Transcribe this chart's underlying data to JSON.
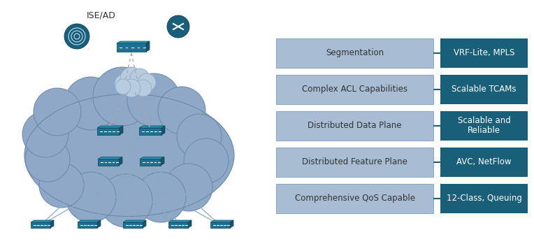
{
  "bg_color": "#ffffff",
  "left_panel": {
    "cloud_color": "#8fa8c8",
    "cloud_stroke": "#6a88a8",
    "switch_color": "#1a5f7a",
    "line_color": "#7a9ab8",
    "dot_line_color": "#aaaaaa",
    "ise_text": "ISE/AD"
  },
  "rows": [
    {
      "label": "Segmentation",
      "detail": "VRF-Lite, MPLS"
    },
    {
      "label": "Complex ACL Capabilities",
      "detail": "Scalable TCAMs"
    },
    {
      "label": "Distributed Data Plane",
      "detail": "Scalable and\nReliable"
    },
    {
      "label": "Distributed Feature Plane",
      "detail": "AVC, NetFlow"
    },
    {
      "label": "Comprehensive QoS Capable",
      "detail": "12-Class, Queuing"
    }
  ],
  "left_box_color": "#a8bcd4",
  "left_box_edge_color": "#8aaac4",
  "right_box_color": "#1a5f7a",
  "right_box_text_color": "#ffffff",
  "left_box_text_color": "#333333",
  "connector_color": "#1a5f7a",
  "label_fontsize": 8.5,
  "detail_fontsize": 8.5
}
